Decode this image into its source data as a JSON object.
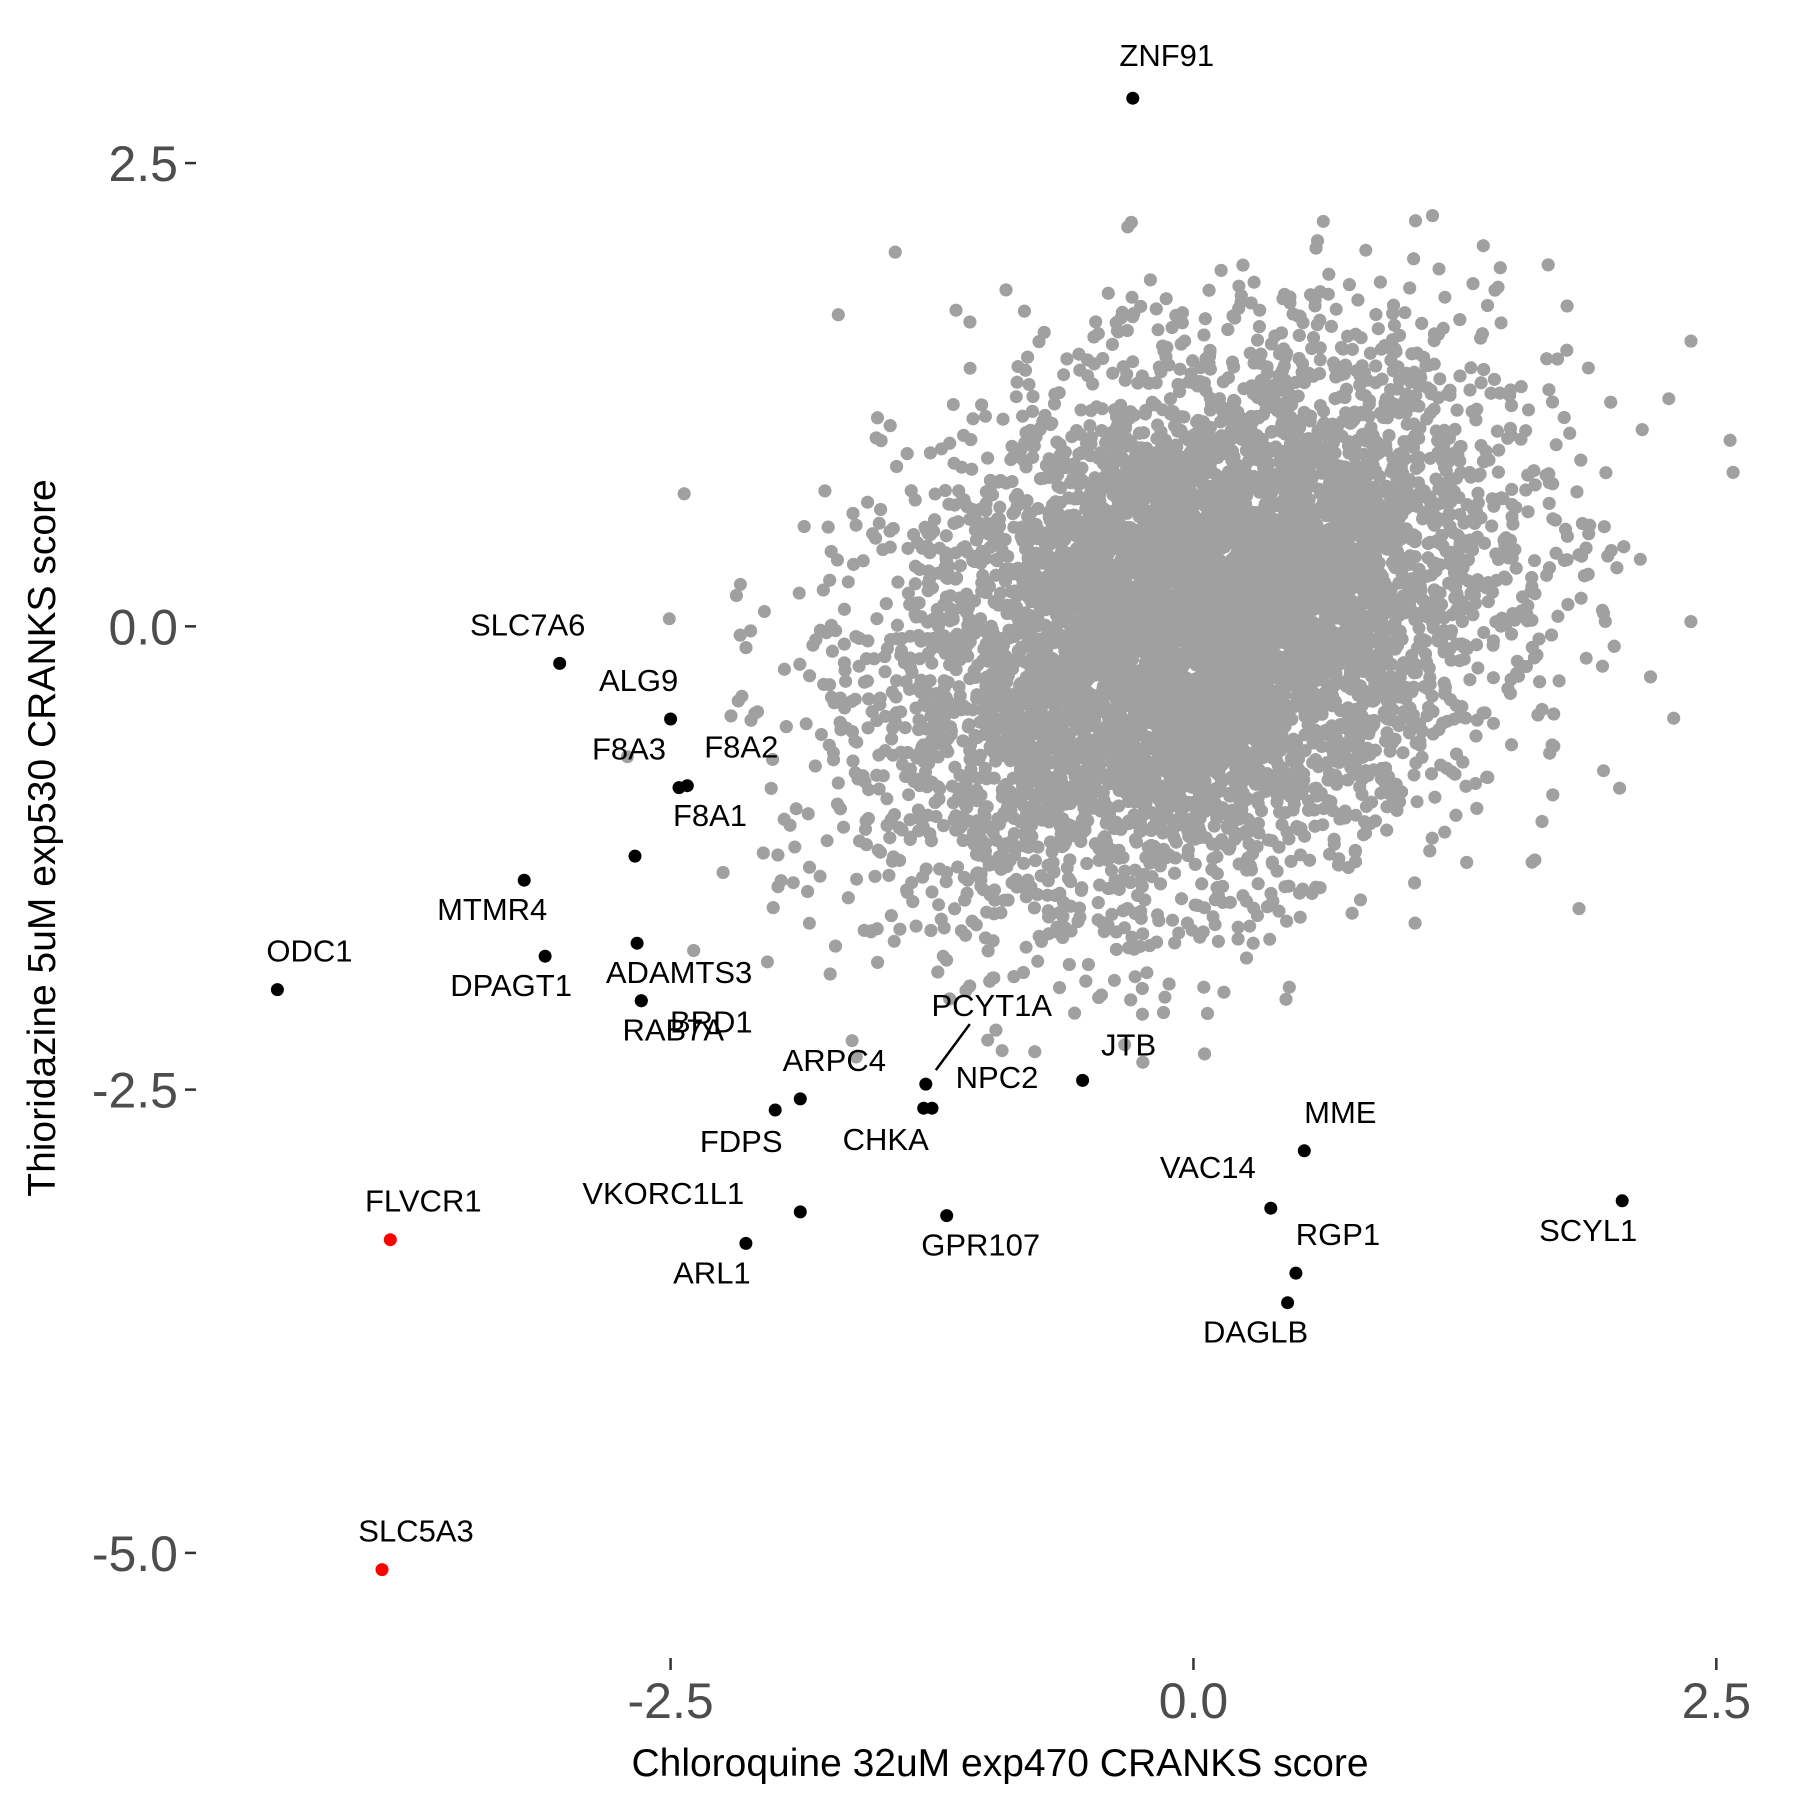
{
  "chart_data": {
    "type": "scatter",
    "xlabel": "Chloroquine 32uM exp470 CRANKS score",
    "ylabel": "Thioridazine 5uM exp530 CRANKS score",
    "xlim": [
      -4.75,
      2.9
    ],
    "ylim": [
      -5.47,
      3.38
    ],
    "x_ticks": [
      {
        "value": -2.5,
        "label": "-2.5"
      },
      {
        "value": 0.0,
        "label": "0.0"
      },
      {
        "value": 2.5,
        "label": "2.5"
      }
    ],
    "y_ticks": [
      {
        "value": 2.5,
        "label": "2.5"
      },
      {
        "value": 0.0,
        "label": "0.0"
      },
      {
        "value": -2.5,
        "label": "-2.5"
      },
      {
        "value": -5.0,
        "label": "-5.0"
      }
    ],
    "grid": false,
    "legend": "none",
    "colors": {
      "background": "#ffffff",
      "cloud": "#a0a0a0",
      "highlight": "#000000",
      "hit": "#ff0000"
    },
    "background_cloud": {
      "description": "thousands of unlabeled genes",
      "color": "#a0a0a0",
      "x_mean": 0.0,
      "x_sd": 0.72,
      "y_mean": 0.0,
      "y_sd": 0.72,
      "correlation": 0.3,
      "count": 12000
    },
    "points": [
      {
        "label": "ZNF91",
        "x": -0.29,
        "y": 2.85,
        "color": "#000000"
      },
      {
        "label": "SLC7A6",
        "x": -3.03,
        "y": -0.2,
        "color": "#000000"
      },
      {
        "label": "ALG9",
        "x": -2.5,
        "y": -0.5,
        "color": "#000000"
      },
      {
        "label": "F8A3",
        "x": -2.46,
        "y": -0.87,
        "color": "#000000"
      },
      {
        "label": "F8A2",
        "x": -2.42,
        "y": -0.86,
        "color": "#000000"
      },
      {
        "label": "F8A1",
        "x": -2.67,
        "y": -1.24,
        "color": "#000000"
      },
      {
        "label": "MTMR4",
        "x": -3.2,
        "y": -1.37,
        "color": "#000000"
      },
      {
        "label": "ADAMTS3",
        "x": -2.66,
        "y": -1.71,
        "color": "#000000"
      },
      {
        "label": "DPAGT1",
        "x": -3.1,
        "y": -1.78,
        "color": "#000000"
      },
      {
        "label": "ODC1",
        "x": -4.38,
        "y": -1.96,
        "color": "#000000"
      },
      {
        "label": "BRD1",
        "x": -2.64,
        "y": -2.02,
        "color": "#000000"
      },
      {
        "label": "RAB7A",
        "x": -2.64,
        "y": -2.02,
        "color": "#000000"
      },
      {
        "label": "ARPC4",
        "x": -1.88,
        "y": -2.55,
        "color": "#000000"
      },
      {
        "label": "FDPS",
        "x": -2.0,
        "y": -2.61,
        "color": "#000000"
      },
      {
        "label": "PCYT1A",
        "x": -1.28,
        "y": -2.47,
        "color": "#000000"
      },
      {
        "label": "CHKA",
        "x": -1.29,
        "y": -2.6,
        "color": "#000000"
      },
      {
        "label": "NPC2",
        "x": -1.25,
        "y": -2.6,
        "color": "#000000"
      },
      {
        "label": "JTB",
        "x": -0.53,
        "y": -2.45,
        "color": "#000000"
      },
      {
        "label": "MME",
        "x": 0.53,
        "y": -2.83,
        "color": "#000000"
      },
      {
        "label": "VAC14",
        "x": 0.37,
        "y": -3.14,
        "color": "#000000"
      },
      {
        "label": "SCYL1",
        "x": 2.05,
        "y": -3.1,
        "color": "#000000"
      },
      {
        "label": "VKORC1L1",
        "x": -1.88,
        "y": -3.16,
        "color": "#000000"
      },
      {
        "label": "GPR107",
        "x": -1.18,
        "y": -3.18,
        "color": "#000000"
      },
      {
        "label": "ARL1",
        "x": -2.14,
        "y": -3.33,
        "color": "#000000"
      },
      {
        "label": "RGP1",
        "x": 0.49,
        "y": -3.49,
        "color": "#000000"
      },
      {
        "label": "DAGLB",
        "x": 0.45,
        "y": -3.65,
        "color": "#000000"
      },
      {
        "label": "FLVCR1",
        "x": -3.84,
        "y": -3.31,
        "color": "#ff0000"
      },
      {
        "label": "SLC5A3",
        "x": -3.88,
        "y": -5.09,
        "color": "#ff0000"
      }
    ]
  }
}
